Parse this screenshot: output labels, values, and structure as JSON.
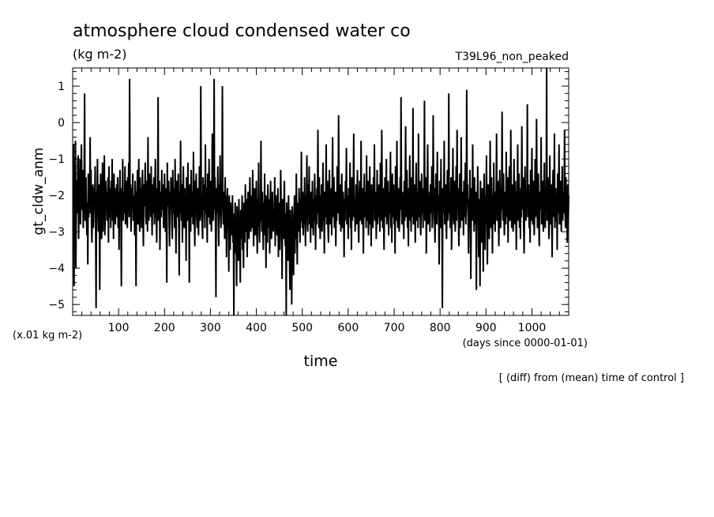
{
  "chart_data": {
    "type": "line",
    "title": "atmosphere cloud condensed water co",
    "units": "(kg m-2)",
    "experiment": "T39L96_non_peaked",
    "ylabel": "gt_cldw_anm",
    "yunit_note": "(x.01 kg m-2)",
    "xlabel": "time",
    "xunit_note": "(days since 0000-01-01)",
    "footnote": "[ (diff) from (mean) time of control ]",
    "xlim": [
      0,
      1080
    ],
    "ylim": [
      -5.3,
      1.5
    ],
    "xticks": [
      "100",
      "200",
      "300",
      "400",
      "500",
      "600",
      "700",
      "800",
      "900",
      "1000"
    ],
    "yticks": [
      "1",
      "0",
      "-1",
      "-2",
      "-3",
      "-4",
      "-5"
    ],
    "series": [
      {
        "x_start": 1,
        "x_step": 1,
        "values": [
          -2.6,
          -0.6,
          -4.5,
          -1.8,
          -2.9,
          -0.5,
          -4.0,
          -2.2,
          -1.6,
          -2.5,
          -1.1,
          -0.9,
          -3.2,
          -1.9,
          -2.3,
          -1.0,
          -2.8,
          -2.1,
          -0.6,
          -1.7,
          -2.4,
          -1.3,
          -2.9,
          -2.0,
          -1.6,
          0.8,
          -2.7,
          -2.3,
          -1.5,
          -2.6,
          -3.1,
          -2.2,
          -3.9,
          -1.4,
          -2.6,
          -1.8,
          -2.2,
          -0.4,
          -2.5,
          -1.3,
          -2.8,
          -3.3,
          -2.0,
          -1.7,
          -2.9,
          -2.5,
          -1.8,
          -2.1,
          -1.2,
          -2.7,
          -5.1,
          -1.9,
          -2.6,
          -1.0,
          -2.3,
          -3.0,
          -1.7,
          -2.4,
          -4.6,
          -2.0,
          -1.4,
          -2.5,
          -3.2,
          -2.8,
          -1.1,
          -3.0,
          -1.8,
          -2.2,
          -0.9,
          -3.1,
          -2.5,
          -1.6,
          -2.4,
          -1.9,
          -2.7,
          -2.2,
          -1.5,
          -3.3,
          -1.2,
          -2.6,
          -2.0,
          -1.8,
          -2.9,
          -1.6,
          -2.3,
          -1.0,
          -2.7,
          -2.2,
          -3.2,
          -1.4,
          -2.5,
          -1.8,
          -2.8,
          -2.0,
          -2.3,
          -1.7,
          -2.6,
          -1.5,
          -2.9,
          -1.9,
          -3.5,
          -2.1,
          -1.3,
          -2.6,
          -2.2,
          -4.5,
          -1.8,
          -2.4,
          -1.0,
          -2.7,
          -2.3,
          -1.9,
          -2.5,
          -1.2,
          -2.8,
          -2.0,
          -1.6,
          -2.3,
          -2.9,
          -1.5,
          -2.4,
          -1.1,
          -2.6,
          1.2,
          -2.2,
          -1.7,
          -3.0,
          -2.5,
          -1.8,
          -2.1,
          -1.4,
          -2.7,
          -2.4,
          -2.0,
          -3.1,
          -1.6,
          -2.3,
          -4.5,
          -1.9,
          -2.5,
          -1.3,
          -2.8,
          -2.2,
          -1.0,
          -2.6,
          -3.0,
          -1.5,
          -2.4,
          -1.8,
          -2.9,
          -2.1,
          -1.3,
          -2.6,
          -3.4,
          -1.7,
          -2.3,
          -2.0,
          -1.1,
          -2.5,
          -2.8,
          -1.6,
          -2.2,
          -3.0,
          -0.4,
          -2.4,
          -2.7,
          -1.4,
          -2.1,
          -1.9,
          -2.6,
          -1.2,
          -2.3,
          -3.1,
          -1.7,
          -2.5,
          -2.0,
          -1.5,
          -2.8,
          -2.2,
          -1.0,
          -2.6,
          -2.4,
          -3.3,
          -1.8,
          -2.2,
          0.7,
          -2.7,
          -2.0,
          -1.6,
          -3.5,
          -2.3,
          -1.9,
          -2.6,
          -1.3,
          -2.4,
          -2.1,
          -1.7,
          -2.9,
          -2.5,
          -1.4,
          -2.2,
          -3.0,
          -1.8,
          -2.6,
          -4.4,
          -1.1,
          -2.3,
          -2.0,
          -1.6,
          -2.7,
          -3.4,
          -1.9,
          -2.4,
          -1.5,
          -2.1,
          -2.8,
          -3.2,
          -1.3,
          -2.5,
          -1.8,
          -2.2,
          -2.9,
          -1.0,
          -2.4,
          -3.6,
          -2.0,
          -1.6,
          -2.6,
          -2.3,
          -1.4,
          -2.8,
          -4.2,
          -1.9,
          -2.5,
          -0.5,
          -2.2,
          -2.7,
          -1.7,
          -3.3,
          -2.1,
          -1.2,
          -2.4,
          -2.9,
          -1.8,
          -2.6,
          -2.0,
          -3.8,
          -1.5,
          -2.3,
          -2.7,
          -1.1,
          -2.5,
          -2.2,
          -4.4,
          -1.7,
          -2.4,
          -3.0,
          -1.3,
          -2.6,
          -2.1,
          -1.9,
          -2.8,
          -0.8,
          -2.3,
          -2.6,
          -3.4,
          -1.6,
          -2.2,
          -1.4,
          -2.5,
          -2.9,
          -2.0,
          -1.8,
          -3.1,
          -2.4,
          -1.2,
          -2.7,
          -2.3,
          1.0,
          -1.9,
          -2.6,
          -2.8,
          -3.2,
          -1.5,
          -2.4,
          -1.7,
          -2.1,
          -2.9,
          -0.6,
          -2.5,
          -1.8,
          -2.3,
          -3.3,
          -1.4,
          -2.2,
          -2.6,
          -1.0,
          -2.4,
          -2.8,
          -1.6,
          -2.0,
          -3.0,
          -2.5,
          -0.3,
          -1.9,
          -2.7,
          -2.2,
          1.2,
          -2.4,
          -1.5,
          -2.8,
          -4.8,
          -1.8,
          -2.3,
          -2.5,
          -1.2,
          -2.6,
          -3.4,
          -1.7,
          -2.2,
          -0.9,
          -2.5,
          -2.9,
          -1.6,
          -2.0,
          1.0,
          -2.4,
          -2.8,
          -1.9,
          -2.2,
          -3.2,
          -1.5,
          -2.6,
          -2.0,
          -3.7,
          -2.4,
          -1.8,
          -2.9,
          -2.3,
          -4.1,
          -2.0,
          -2.6,
          -3.5,
          -2.2,
          -2.9,
          -2.4,
          -3.1,
          -2.0,
          -3.3,
          -2.7,
          -5.4,
          -2.5,
          -3.0,
          -2.2,
          -3.6,
          -2.8,
          -4.5,
          -2.3,
          -3.1,
          -2.6,
          -3.8,
          -2.1,
          -3.4,
          -2.9,
          -4.4,
          -2.4,
          -3.2,
          -2.7,
          -2.0,
          -3.5,
          -2.5,
          -4.0,
          -2.2,
          -2.9,
          -3.3,
          -1.7,
          -2.6,
          -3.0,
          -2.1,
          -3.7,
          -2.4,
          -1.9,
          -2.8,
          -3.2,
          -2.3,
          -1.5,
          -2.7,
          -3.0,
          -2.0,
          -2.5,
          -2.9,
          -1.3,
          -2.4,
          -3.4,
          -2.7,
          -1.8,
          -2.2,
          -3.1,
          -2.6,
          -1.6,
          -2.9,
          -3.6,
          -2.1,
          -2.5,
          -1.1,
          -2.8,
          -3.3,
          -2.3,
          -2.7,
          -0.5,
          -2.4,
          -3.0,
          -1.9,
          -2.6,
          -3.5,
          -2.2,
          -2.8,
          -1.4,
          -3.1,
          -2.5,
          -4.0,
          -2.0,
          -2.7,
          -3.3,
          -1.7,
          -2.4,
          -2.9,
          -2.1,
          -3.6,
          -2.5,
          -1.6,
          -2.8,
          -3.2,
          -2.2,
          -1.9,
          -2.7,
          -3.0,
          -2.4,
          -2.6,
          -1.5,
          -3.4,
          -2.3,
          -2.8,
          -2.0,
          -3.1,
          -2.5,
          -1.8,
          -3.7,
          -2.2,
          -2.9,
          -3.5,
          -2.6,
          -1.3,
          -2.4,
          -3.0,
          -4.3,
          -2.1,
          -2.7,
          -3.2,
          -2.3,
          -1.6,
          -2.9,
          -3.4,
          -2.5,
          -5.3,
          -2.2,
          -3.0,
          -2.6,
          -3.8,
          -2.0,
          -2.8,
          -3.5,
          -4.6,
          -2.4,
          -3.1,
          -2.7,
          -5.0,
          -2.3,
          -2.9,
          -3.4,
          -4.2,
          -2.6,
          -2.0,
          -3.6,
          -2.5,
          -3.2,
          -1.4,
          -2.8,
          -3.9,
          -2.2,
          -2.6,
          -3.0,
          -1.8,
          -2.4,
          -3.3,
          -2.1,
          -2.7,
          -0.8,
          -2.5,
          -2.9,
          -1.9,
          -3.1,
          -2.3,
          -2.8,
          -1.5,
          -2.6,
          -3.4,
          -2.0,
          -2.4,
          -0.9,
          -2.7,
          -3.0,
          -1.7,
          -2.5,
          -1.2,
          -2.8,
          -2.2,
          -3.3,
          -1.9,
          -2.4,
          -2.9,
          -1.6,
          -2.6,
          -3.1,
          -2.1,
          -2.7,
          -1.4,
          -2.3,
          -3.5,
          -2.0,
          -2.8,
          -1.8,
          -2.5,
          -0.2,
          -2.2,
          -2.9,
          -1.5,
          -2.6,
          -3.2,
          -2.0,
          -2.4,
          -1.7,
          -3.0,
          -2.5,
          -1.1,
          -2.7,
          -2.3,
          -3.6,
          -1.9,
          -2.6,
          -2.1,
          -0.6,
          -2.8,
          -2.4,
          -1.6,
          -2.9,
          -3.3,
          -2.2,
          -1.3,
          -2.5,
          -2.8,
          -1.8,
          -2.3,
          -3.1,
          -2.0,
          -0.4,
          -2.6,
          -2.2,
          -1.5,
          -2.9,
          -2.4,
          -1.9,
          -3.4,
          -2.1,
          -2.7,
          -1.2,
          -2.5,
          -2.3,
          0.2,
          -2.0,
          -2.8,
          -1.7,
          -2.4,
          -3.0,
          -2.2,
          -1.4,
          -2.6,
          -2.9,
          -1.9,
          -2.3,
          -3.7,
          -2.1,
          -2.7,
          -1.6,
          -2.4,
          -0.7,
          -2.8,
          -2.0,
          -2.5,
          -3.2,
          -1.8,
          -2.3,
          -2.6,
          -1.1,
          -2.9,
          -2.2,
          -3.5,
          -1.5,
          -2.7,
          -2.4,
          -1.9,
          -0.3,
          -2.6,
          -2.1,
          -3.0,
          -2.5,
          -1.7,
          -2.8,
          -2.3,
          -1.3,
          -2.4,
          -2.9,
          -3.3,
          -2.0,
          -1.6,
          -2.7,
          -2.2,
          -0.5,
          -2.5,
          -2.8,
          -1.8,
          -2.3,
          -3.6,
          -2.1,
          -1.4,
          -2.6,
          -2.4,
          -1.9,
          -2.9,
          -0.9,
          -2.7,
          -2.2,
          -1.6,
          -3.1,
          -2.5,
          -2.0,
          -1.2,
          -2.8,
          -2.3,
          -3.4,
          -1.7,
          -2.6,
          -2.1,
          -2.9,
          -1.5,
          -2.4,
          -0.6,
          -2.7,
          -2.2,
          -1.9,
          -3.2,
          -2.5,
          -1.3,
          -2.8,
          -2.0,
          -2.6,
          -1.7,
          -2.3,
          -3.0,
          -1.1,
          -2.7,
          -2.4,
          -0.2,
          -2.1,
          -2.9,
          -1.8,
          -2.5,
          -3.5,
          -2.2,
          -1.5,
          -2.6,
          -2.3,
          -1.0,
          -2.8,
          -2.0,
          -2.7,
          -1.6,
          -3.1,
          -2.4,
          -1.9,
          -2.5,
          -0.8,
          -2.9,
          -2.2,
          -3.3,
          -1.4,
          -2.6,
          -2.1,
          -1.7,
          -2.8,
          -2.4,
          -3.6,
          -1.2,
          -2.7,
          -2.3,
          -0.5,
          -2.5,
          -2.9,
          -1.8,
          -2.2,
          -3.0,
          -2.6,
          -1.5,
          -2.4,
          0.7,
          -2.1,
          -2.8,
          -1.9,
          -2.5,
          -2.3,
          -3.2,
          -1.6,
          -2.7,
          -2.0,
          -0.1,
          -2.6,
          -2.4,
          -1.3,
          -2.9,
          -2.2,
          -3.4,
          -1.8,
          -2.5,
          -0.9,
          -2.7,
          -2.1,
          -3.0,
          -1.5,
          -2.6,
          -2.3,
          0.4,
          -2.8,
          -2.0,
          -1.7,
          -2.4,
          -3.3,
          -2.2,
          -1.1,
          -2.7,
          -2.5,
          -1.9,
          -2.9,
          -0.3,
          -2.6,
          -2.3,
          -1.6,
          -2.8,
          -3.1,
          -2.0,
          -1.4,
          -2.5,
          -2.2,
          -2.9,
          -1.8,
          -2.4,
          0.6,
          -2.7,
          -2.1,
          -1.5,
          -3.6,
          -2.6,
          -2.3,
          -0.6,
          -2.8,
          -1.9,
          -2.4,
          -2.0,
          -3.0,
          -1.7,
          -2.5,
          -2.2,
          -1.2,
          -2.9,
          -2.6,
          0.2,
          -2.3,
          -1.8,
          -2.7,
          -3.3,
          -2.1,
          -1.4,
          -2.5,
          -2.8,
          -0.8,
          -2.4,
          -2.0,
          -2.6,
          -3.9,
          -1.6,
          -2.3,
          -2.9,
          -1.0,
          -2.7,
          -2.2,
          -5.1,
          -1.8,
          -2.5,
          -2.1,
          -0.5,
          -2.8,
          -2.4,
          -1.7,
          -2.6,
          -3.2,
          -2.0,
          -1.3,
          -2.7,
          -2.3,
          0.8,
          -2.5,
          -1.9,
          -2.9,
          -2.2,
          -1.5,
          -3.5,
          -2.6,
          -2.1,
          -0.7,
          -2.4,
          -2.8,
          -1.6,
          -2.3,
          -3.0,
          -2.5,
          -1.2,
          -2.7,
          -0.2,
          -2.2,
          -1.8,
          -2.6,
          -3.4,
          -2.4,
          -1.4,
          -2.9,
          -2.1,
          -0.4,
          -2.5,
          -2.7,
          -1.9,
          -2.3,
          -3.1,
          -1.6,
          -2.6,
          -2.0,
          -1.1,
          -2.8,
          -2.4,
          0.9,
          -2.2,
          -1.7,
          -2.5,
          -3.6,
          -2.1,
          -2.9,
          -1.3,
          -2.6,
          -4.3,
          -2.3,
          -1.8,
          -2.7,
          -0.6,
          -2.4,
          -2.0,
          -3.0,
          -1.5,
          -2.5,
          -2.8,
          -1.9,
          -4.6,
          -2.2,
          -2.6,
          -1.2,
          -2.3,
          -3.7,
          -2.1,
          -2.7,
          -4.5,
          -1.6,
          -2.4,
          -2.9,
          -3.3,
          -1.8,
          -2.5,
          -4.1,
          -2.2,
          -1.4,
          -2.6,
          -3.5,
          -2.0,
          -2.8,
          -0.9,
          -2.4,
          -3.9,
          -2.1,
          -1.7,
          -2.7,
          -3.2,
          -2.3,
          -0.5,
          -2.5,
          -2.9,
          -1.5,
          -2.2,
          -3.6,
          -2.0,
          -2.6,
          -1.1,
          -2.8,
          -2.4,
          -3.0,
          -1.9,
          -2.3,
          -0.3,
          -2.7,
          -2.1,
          -1.6,
          -2.5,
          -3.4,
          -2.2,
          -1.3,
          -2.6,
          -2.9,
          -1.8,
          -2.4,
          0.3,
          -2.0,
          -2.7,
          -1.4,
          -2.5,
          -3.1,
          -2.3,
          -1.9,
          -2.8,
          -0.8,
          -2.2,
          -2.6,
          -1.5,
          -3.3,
          -2.4,
          -2.0,
          -1.2,
          -2.7,
          -2.5,
          -0.2,
          -2.1,
          -2.9,
          -1.7,
          -2.3,
          -3.0,
          -2.6,
          -1.0,
          -2.4,
          -2.8,
          -1.6,
          -2.2,
          -3.5,
          -1.9,
          -2.5,
          -0.6,
          -2.7,
          -2.3,
          -1.4,
          -2.9,
          -2.1,
          -3.2,
          -1.8,
          -2.6,
          -0.1,
          -2.4,
          -2.0,
          -1.5,
          -2.8,
          -3.6,
          -2.2,
          -1.2,
          -2.5,
          -2.7,
          -1.9,
          -2.3,
          0.5,
          -2.6,
          -2.1,
          -1.7,
          -2.9,
          -2.4,
          -3.3,
          -1.3,
          -2.7,
          -2.0,
          -0.7,
          -2.5,
          -2.8,
          -1.6,
          -2.2,
          -3.1,
          -2.4,
          -1.0,
          -2.6,
          -2.3,
          0.1,
          -1.8,
          -2.9,
          -2.5,
          -1.4,
          -2.7,
          -3.4,
          -2.1,
          -1.9,
          -2.4,
          -0.4,
          -2.8,
          -2.2,
          -1.6,
          -2.6,
          -3.0,
          -2.0,
          -1.1,
          -2.5,
          -2.9,
          -1.8,
          -2.3,
          1.5,
          -2.7,
          -2.1,
          -1.5,
          -2.4,
          -3.2,
          -2.6,
          -0.9,
          -2.8,
          -2.2,
          -1.7,
          -2.5,
          -3.7,
          -2.0,
          -1.3,
          -2.6,
          -2.3,
          -0.3,
          -2.9,
          -2.4,
          -1.8,
          -2.7,
          -2.1,
          -3.5,
          -1.4,
          -2.5,
          -2.2,
          -0.6,
          -2.8,
          -2.6,
          -1.6,
          -2.3,
          -3.0,
          -2.0,
          -1.2,
          -2.7,
          -2.4,
          -1.9,
          -2.5,
          -0.2,
          -2.1,
          -2.9,
          -1.5,
          -2.6,
          -2.3,
          -3.3,
          -1.7,
          -2.8,
          -2.0,
          -0.8,
          -2.4,
          -2.7,
          -1.3,
          -2.5,
          -2.2,
          -3.1,
          -1.8,
          -2.6,
          -2.1,
          -1.0,
          -2.9,
          -2.4,
          -1.6,
          -2.3,
          -2.7,
          -4.2,
          -1.4,
          -2.5,
          -2.2,
          -0.5,
          -2.8,
          -2.6,
          -1.9,
          -2.4,
          -3.0,
          -2.0,
          -1.2,
          -2.7,
          -1.7,
          -2.5,
          -2.3,
          -3.4,
          -1.5,
          -2.8,
          -0.4,
          -2.2,
          -2.6,
          -1.8,
          -2.4,
          -2.9,
          -2.0,
          -1.3,
          -2.7,
          -1.6,
          -2.5,
          0.2,
          -2.3,
          -1.9,
          -2.8,
          -1.4,
          -2.6,
          -0.6,
          -2.2,
          -1.8,
          -2.4,
          -1.5,
          -2.7,
          -1.0,
          -2.1,
          -0.5,
          -1.7,
          0.3,
          -1.9,
          -1.2
        ]
      }
    ]
  }
}
